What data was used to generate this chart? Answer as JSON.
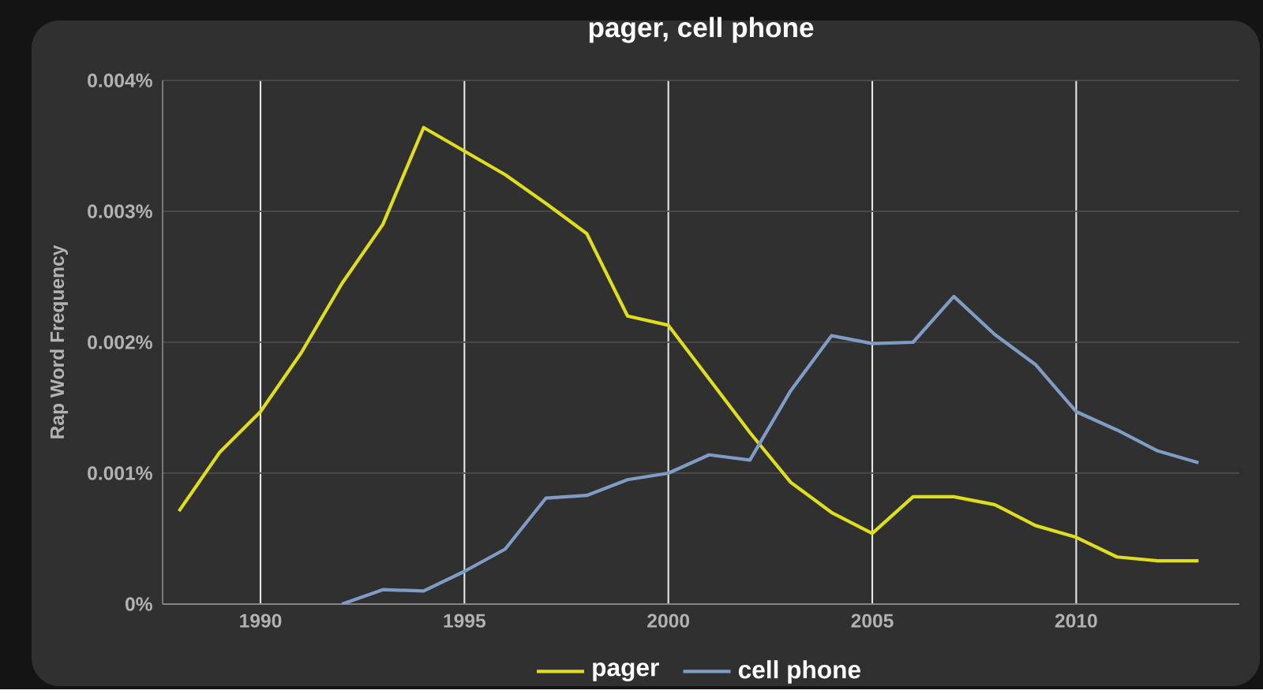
{
  "chart_data": {
    "type": "line",
    "title": "pager, cell phone",
    "ylabel": "Rap Word Frequency",
    "x": [
      1988,
      1989,
      1990,
      1991,
      1992,
      1993,
      1994,
      1995,
      1996,
      1997,
      1998,
      1999,
      2000,
      2001,
      2002,
      2003,
      2004,
      2005,
      2006,
      2007,
      2008,
      2009,
      2010,
      2011,
      2012,
      2013
    ],
    "series": [
      {
        "name": "pager",
        "color": "#dede1e",
        "values": [
          0.00071,
          0.00116,
          0.00147,
          0.00192,
          0.00245,
          0.0029,
          0.00364,
          0.00346,
          0.00328,
          0.00306,
          0.00283,
          0.0022,
          0.00213,
          0.00172,
          0.00131,
          0.00093,
          0.0007,
          0.00054,
          0.00082,
          0.00082,
          0.00076,
          0.0006,
          0.00051,
          0.00036,
          0.00033,
          0.00033
        ]
      },
      {
        "name": "cell phone",
        "color": "#7f9dc4",
        "values": [
          null,
          null,
          null,
          null,
          0,
          0.00011,
          0.0001,
          0.00025,
          0.00042,
          0.00081,
          0.00083,
          0.00095,
          0.001,
          0.00114,
          0.0011,
          0.00163,
          0.00205,
          0.00199,
          0.002,
          0.00235,
          0.00206,
          0.00183,
          0.00147,
          0.00133,
          0.00117,
          0.00108
        ]
      }
    ],
    "xlim": [
      1987.6,
      2014
    ],
    "ylim": [
      0,
      0.004
    ],
    "xticks": [
      1990,
      1995,
      2000,
      2005,
      2010
    ],
    "yticks": [
      {
        "value": 0,
        "label": "0%"
      },
      {
        "value": 0.001,
        "label": "0.001%"
      },
      {
        "value": 0.002,
        "label": "0.002%"
      },
      {
        "value": 0.003,
        "label": "0.003%"
      },
      {
        "value": 0.004,
        "label": "0.004%"
      }
    ],
    "grid": true,
    "legend": "bottom"
  }
}
